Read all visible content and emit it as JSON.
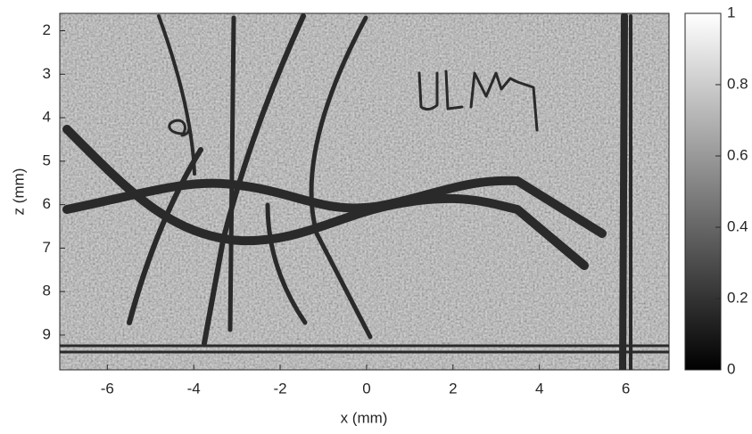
{
  "chart_data": {
    "type": "heatmap",
    "xlabel": "x (mm)",
    "ylabel": "z (mm)",
    "xlim": [
      -7.1,
      7.0
    ],
    "xticks": [
      -6,
      -4,
      -2,
      0,
      2,
      4,
      6
    ],
    "ylim": [
      1.6,
      9.8
    ],
    "yticks": [
      2,
      3,
      4,
      5,
      6,
      7,
      8,
      9
    ],
    "y_reversed": true,
    "colorbar": {
      "lim": [
        0,
        1
      ],
      "ticks": [
        0,
        0.2,
        0.4,
        0.6,
        0.8,
        1
      ],
      "colormap": [
        "#000000",
        "#ffffff"
      ]
    }
  }
}
